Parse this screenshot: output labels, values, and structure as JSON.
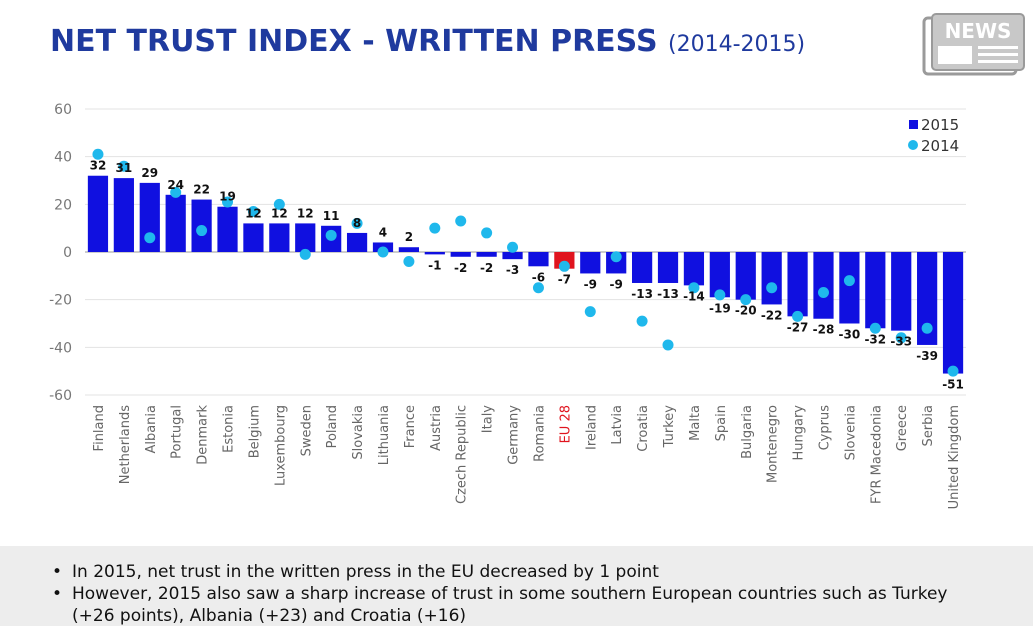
{
  "header": {
    "title": "NET TRUST INDEX - WRITTEN PRESS",
    "subtitle": "(2014-2015)",
    "logo_text": "NEWS"
  },
  "chart_data": {
    "type": "bar",
    "title": "NET TRUST INDEX - WRITTEN PRESS (2014-2015)",
    "xlabel": "",
    "ylabel": "",
    "ylim": [
      -60,
      60
    ],
    "yticks": [
      60,
      40,
      20,
      0,
      -20,
      -40,
      -60
    ],
    "grid": true,
    "legend_position": "top-right",
    "categories": [
      "Finland",
      "Netherlands",
      "Albania",
      "Portugal",
      "Denmark",
      "Estonia",
      "Belgium",
      "Luxembourg",
      "Sweden",
      "Poland",
      "Slovakia",
      "Lithuania",
      "France",
      "Austria",
      "Czech Republic",
      "Italy",
      "Germany",
      "Romania",
      "EU 28",
      "Ireland",
      "Latvia",
      "Croatia",
      "Turkey",
      "Malta",
      "Spain",
      "Bulgaria",
      "Montenegro",
      "Hungary",
      "Cyprus",
      "Slovenia",
      "FYR Macedonia",
      "Greece",
      "Serbia",
      "United Kingdom"
    ],
    "highlight_category": "EU 28",
    "series": [
      {
        "name": "2015",
        "kind": "bar",
        "color": "#1010E0",
        "values": [
          32,
          31,
          29,
          24,
          22,
          19,
          12,
          12,
          12,
          11,
          8,
          4,
          2,
          -1,
          -2,
          -2,
          -3,
          -6,
          -7,
          -9,
          -9,
          -13,
          -13,
          -14,
          -19,
          -20,
          -22,
          -27,
          -28,
          -30,
          -32,
          -33,
          -39,
          -51
        ]
      },
      {
        "name": "2014",
        "kind": "point",
        "color": "#1FB8EC",
        "values": [
          41,
          36,
          6,
          25,
          9,
          21,
          17,
          20,
          -1,
          7,
          12,
          0,
          -4,
          10,
          13,
          8,
          2,
          -15,
          -6,
          -25,
          -2,
          -29,
          -39,
          -15,
          -18,
          -20,
          -15,
          -27,
          -17,
          -12,
          -32,
          -36,
          -32,
          -50
        ]
      }
    ],
    "colors": {
      "bar_2015": "#1010E0",
      "bar_highlight": "#E0141E",
      "dot_2014": "#1FB8EC",
      "title": "#1F3A9E"
    }
  },
  "footer": {
    "bullets": [
      "In 2015, net trust in the written press in the EU decreased by 1 point",
      "However, 2015 also saw a sharp increase of trust in some southern European countries such as Turkey (+26 points), Albania (+23) and Croatia (+16)"
    ]
  }
}
